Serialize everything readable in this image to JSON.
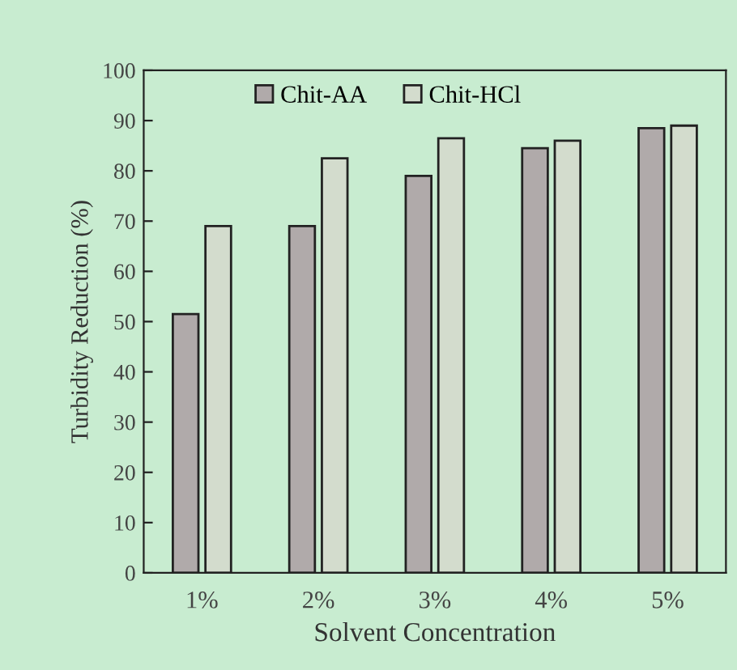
{
  "chart_data": {
    "type": "bar",
    "xlabel": "Solvent Concentration",
    "ylabel": "Turbidity Reduction (%)",
    "categories": [
      "1%",
      "2%",
      "3%",
      "4%",
      "5%"
    ],
    "series": [
      {
        "name": "Chit-AA",
        "color": "#b0aaaa",
        "values": [
          51.5,
          69,
          79,
          84.5,
          88.5
        ]
      },
      {
        "name": "Chit-HCl",
        "color": "#d3dccd",
        "values": [
          69,
          82.5,
          86.5,
          86,
          89
        ]
      }
    ],
    "ylim": [
      0,
      100
    ],
    "yticks": [
      0,
      10,
      20,
      30,
      40,
      50,
      60,
      70,
      80,
      90,
      100
    ],
    "grid": false,
    "legend": "top"
  }
}
